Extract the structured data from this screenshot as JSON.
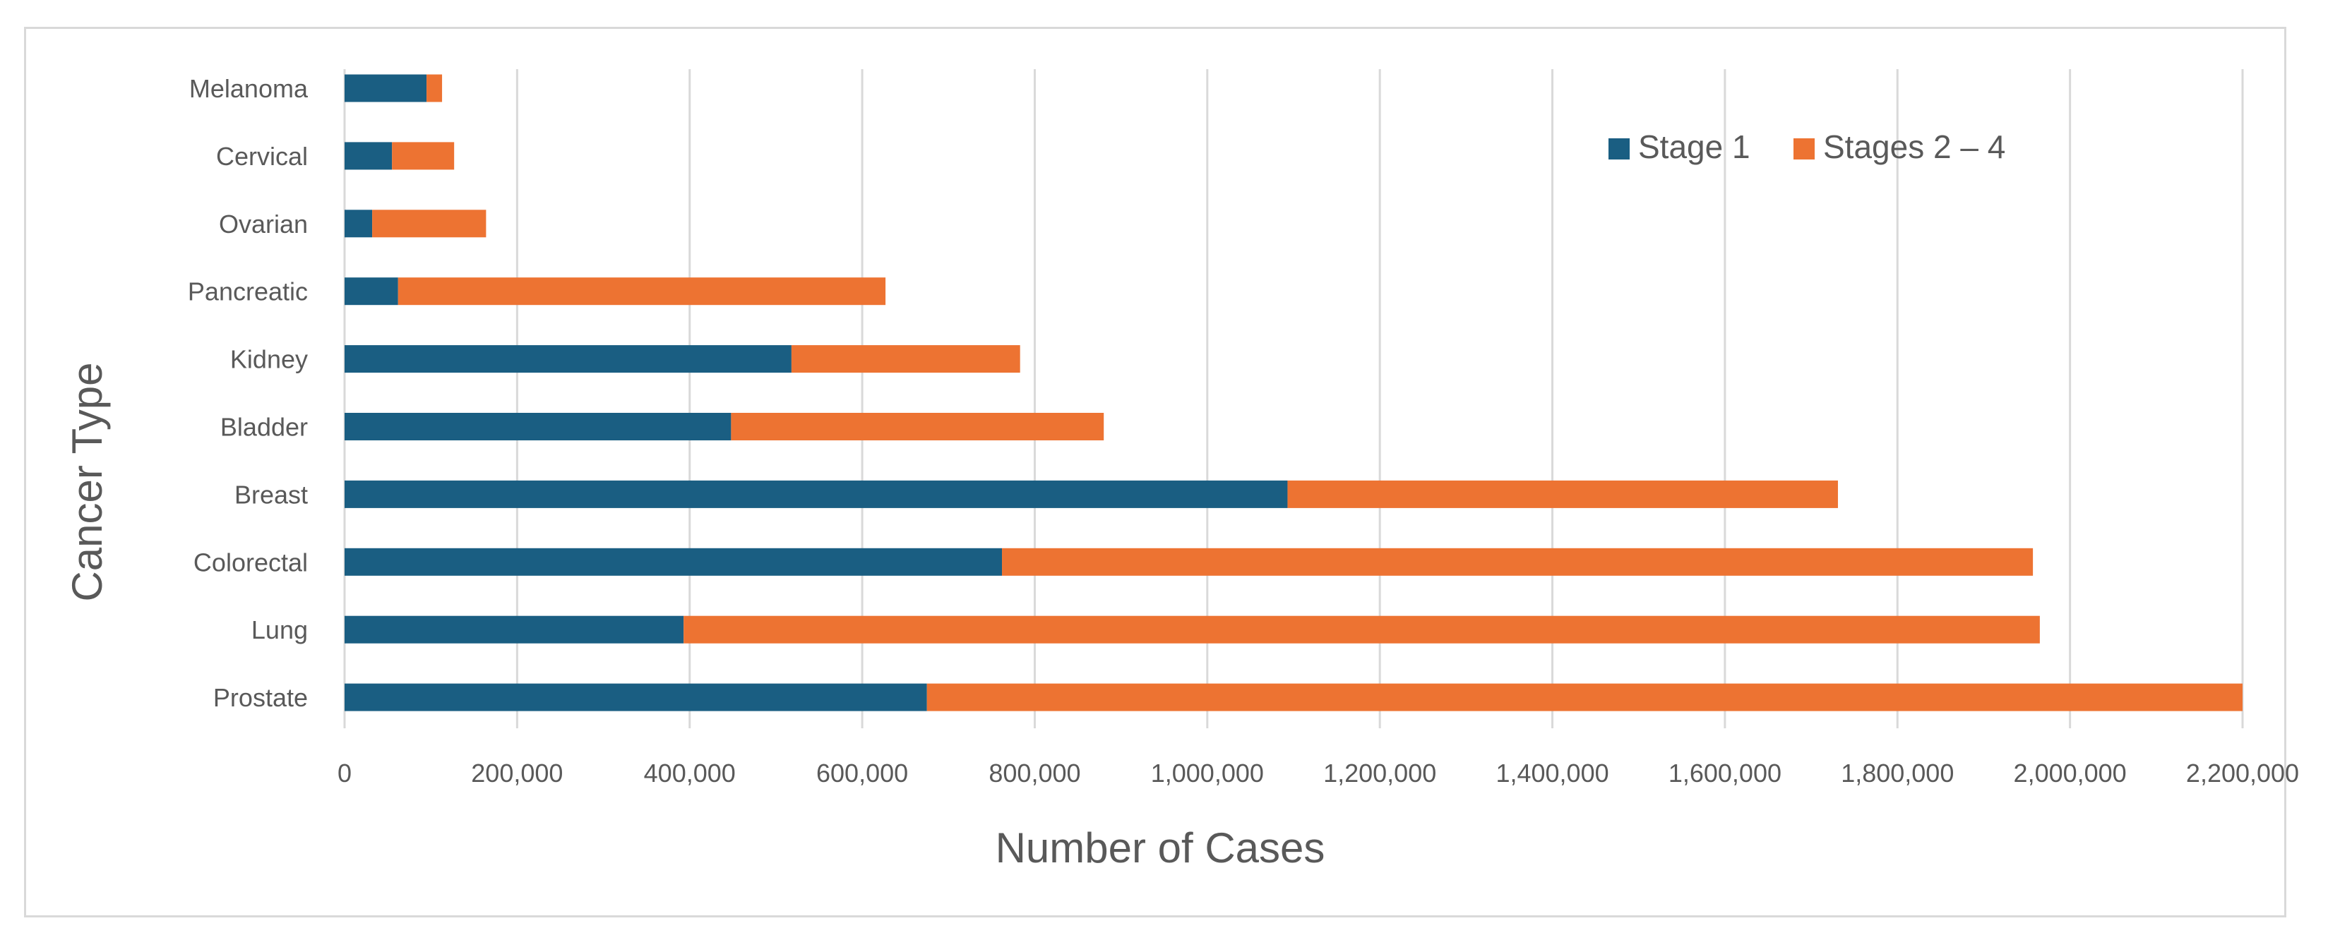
{
  "chart_data": {
    "type": "bar",
    "orientation": "horizontal",
    "stacked": true,
    "title": "",
    "xlabel": "Number of Cases",
    "ylabel": "Cancer Type",
    "categories": [
      "Melanoma",
      "Cervical",
      "Ovarian",
      "Pancreatic",
      "Kidney",
      "Bladder",
      "Breast",
      "Colorectal",
      "Lung",
      "Prostate"
    ],
    "series": [
      {
        "name": "Stage 1",
        "color": "#1a5e82",
        "values": [
          95000,
          55000,
          32000,
          62000,
          518000,
          448000,
          1093000,
          762000,
          393000,
          675000
        ]
      },
      {
        "name": "Stages 2 – 4",
        "color": "#ed7332",
        "values": [
          18000,
          72000,
          132000,
          565000,
          265000,
          432000,
          638000,
          1195000,
          1572000,
          1525000
        ]
      }
    ],
    "xlim": [
      0,
      2200000
    ],
    "xticks": [
      0,
      200000,
      400000,
      600000,
      800000,
      1000000,
      1200000,
      1400000,
      1600000,
      1800000,
      2000000,
      2200000
    ],
    "xtick_labels": [
      "0",
      "200,000",
      "400,000",
      "600,000",
      "800,000",
      "1,000,000",
      "1,200,000",
      "1,400,000",
      "1,600,000",
      "1,800,000",
      "2,000,000",
      "2,200,000"
    ],
    "grid": true,
    "legend_position": "top-right",
    "colors": {
      "grid": "#d9d9d9",
      "axis_text": "#595959",
      "border": "#d9d9d9"
    }
  }
}
